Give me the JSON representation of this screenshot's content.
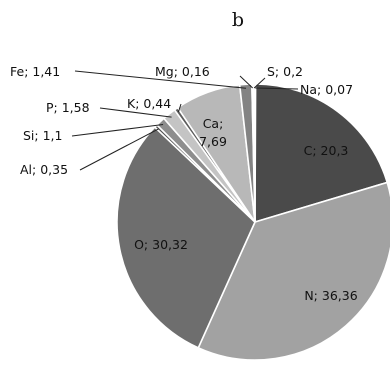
{
  "chart_data": {
    "type": "pie",
    "title": "b",
    "slices": [
      {
        "label": "Na",
        "value": 0.07,
        "display": "Na; 0,07",
        "color": "#7a7a7a"
      },
      {
        "label": "C",
        "value": 20.3,
        "display": "C; 20,3",
        "color": "#4a4a4a"
      },
      {
        "label": "N",
        "value": 36.36,
        "display": "N; 36,36",
        "color": "#a2a2a2"
      },
      {
        "label": "O",
        "value": 30.32,
        "display": "O; 30,32",
        "color": "#6e6e6e"
      },
      {
        "label": "Al",
        "value": 0.35,
        "display": "Al; 0,35",
        "color": "#555555"
      },
      {
        "label": "Si",
        "value": 1.1,
        "display": "Si; 1,1",
        "color": "#8e8e8e"
      },
      {
        "label": "P",
        "value": 1.58,
        "display": "P; 1,58",
        "color": "#c4c4c4"
      },
      {
        "label": "K",
        "value": 0.44,
        "display": "K; 0,44",
        "color": "#5c5c5c"
      },
      {
        "label": "Ca",
        "value": 7.69,
        "display": "Ca;\n7,69",
        "color": "#b8b8b8"
      },
      {
        "label": "Fe",
        "value": 1.41,
        "display": "Fe; 1,41",
        "color": "#838383"
      },
      {
        "label": "Mg",
        "value": 0.16,
        "display": "Mg; 0,16",
        "color": "#999999"
      },
      {
        "label": "S",
        "value": 0.2,
        "display": "S; 0,2",
        "color": "#d4d4d4"
      }
    ]
  }
}
